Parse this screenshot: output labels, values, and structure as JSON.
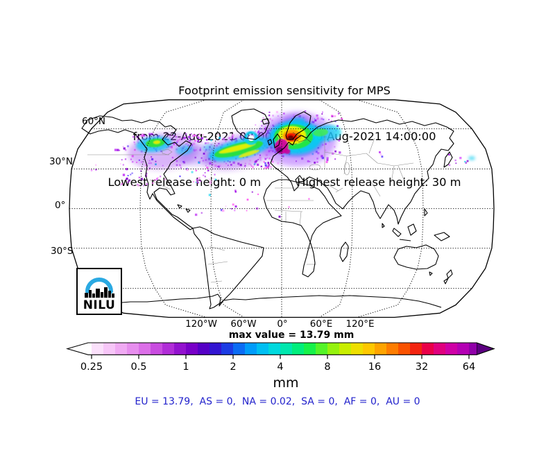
{
  "title": {
    "line1": "Footprint emission sensitivity for MPS",
    "line2": "from 22-Aug-2021 08:00:00 to 30-Aug-2021 14:00:00",
    "line3_left": "Lowest release height: 0 m",
    "line3_right": "Highest release height: 30 m"
  },
  "map": {
    "lat_labels": [
      "60°N",
      "30°N",
      "0°",
      "30°S"
    ],
    "lon_labels": [
      "120°W",
      "60°W",
      "0°",
      "60°E",
      "120°E"
    ]
  },
  "logo": {
    "text": "NILU",
    "arc_color": "#2aa9e2"
  },
  "max_value_label": "max value = 13.79 mm",
  "colorbar": {
    "unit": "mm",
    "tick_labels": [
      "0.25",
      "0.5",
      "1",
      "2",
      "4",
      "8",
      "16",
      "32",
      "64"
    ],
    "lead_color": "#ffffff",
    "tail_color": "#9000a8",
    "left_arrow_color": "#ffffff",
    "right_arrow_color": "#5c0080",
    "colors": [
      "#fbe0fb",
      "#f7c6f8",
      "#f0aaf3",
      "#e78eee",
      "#dc6fe8",
      "#c94ce0",
      "#b12dd8",
      "#9312cf",
      "#7800c8",
      "#5500c6",
      "#3315d2",
      "#1c3ce4",
      "#0b6cf4",
      "#009cfa",
      "#00bff2",
      "#00d9de",
      "#00e7ae",
      "#00ee7c",
      "#16f24a",
      "#54f428",
      "#95f20e",
      "#c9ee00",
      "#eedf00",
      "#fec800",
      "#fea400",
      "#fe7d00",
      "#fa5200",
      "#f32410",
      "#ea0048",
      "#e0007e",
      "#cf00a6",
      "#b400b4"
    ]
  },
  "regions_line": {
    "text": "EU = 13.79,  AS = 0,  NA = 0.02,  SA = 0,  AF = 0,  AU = 0",
    "color": "#2222cc"
  },
  "chart_data": {
    "type": "heatmap",
    "title": "Footprint emission sensitivity for MPS",
    "subtitle": "from 22-Aug-2021 08:00:00 to 30-Aug-2021 14:00:00",
    "station": "MPS",
    "period": {
      "start": "22-Aug-2021 08:00:00",
      "end": "30-Aug-2021 14:00:00"
    },
    "release_heights_m": {
      "lowest": 0,
      "highest": 30
    },
    "projection": "Robinson-like world map",
    "graticule": {
      "lat_lines_deg": [
        60,
        30,
        0,
        -30,
        -60
      ],
      "lon_lines_deg": [
        -120,
        -60,
        0,
        60,
        120
      ]
    },
    "colorbar": {
      "unit": "mm",
      "scale": "log2",
      "ticks": [
        0.25,
        0.5,
        1,
        2,
        4,
        8,
        16,
        32,
        64
      ],
      "extend": "both"
    },
    "max_value_mm": 13.79,
    "region_totals": {
      "EU": 13.79,
      "AS": 0,
      "NA": 0.02,
      "SA": 0,
      "AF": 0,
      "AU": 0
    },
    "plume_description": "Sensitivity band between ~40N and 60N stretching from central North America across the North Atlantic into Europe; maximum (red/magenta core) over central Europe, cyan-green-yellow streaks over the Atlantic, scattered violet speckles over North America, the eastern Pacific and east of Japan"
  }
}
